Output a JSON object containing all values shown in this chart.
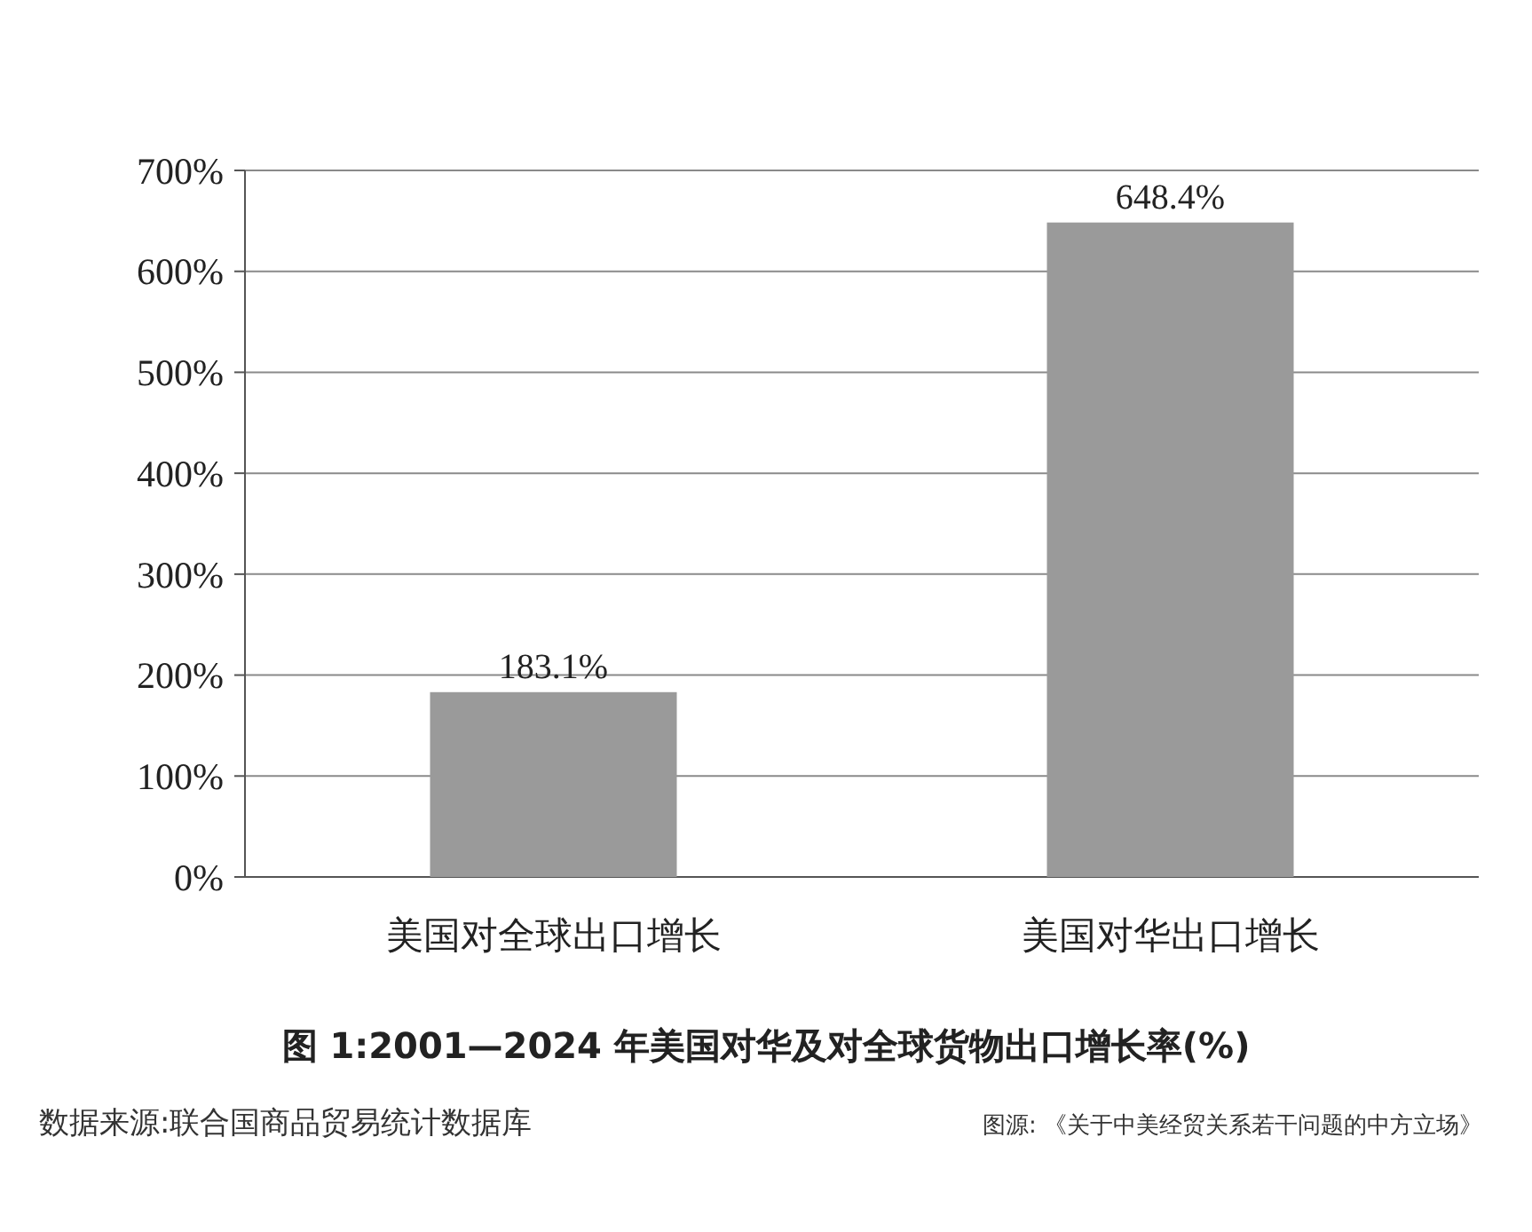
{
  "chart_data": {
    "type": "bar",
    "title": "图 1:2001—2024 年美国对华及对全球货物出口增长率(%)",
    "categories": [
      "美国对全球出口增长",
      "美国对华出口增长"
    ],
    "values": [
      183.1,
      648.4
    ],
    "color": "#9a9a9a",
    "value_labels": [
      "183.1%",
      "648.4%"
    ],
    "ylim": [
      0,
      700
    ],
    "yticks": [
      {
        "value": 0,
        "label": "0%"
      },
      {
        "value": 100,
        "label": "100%"
      },
      {
        "value": 200,
        "label": "200%"
      },
      {
        "value": 300,
        "label": "300%"
      },
      {
        "value": 400,
        "label": "400%"
      },
      {
        "value": 500,
        "label": "500%"
      },
      {
        "value": 600,
        "label": "600%"
      },
      {
        "value": 700,
        "label": "700%"
      }
    ],
    "grid": "y",
    "annotations": [
      "数据来源:联合国商品贸易统计数据库",
      "图源: 《关于中美经贸关系若干问题的中方立场》"
    ]
  }
}
